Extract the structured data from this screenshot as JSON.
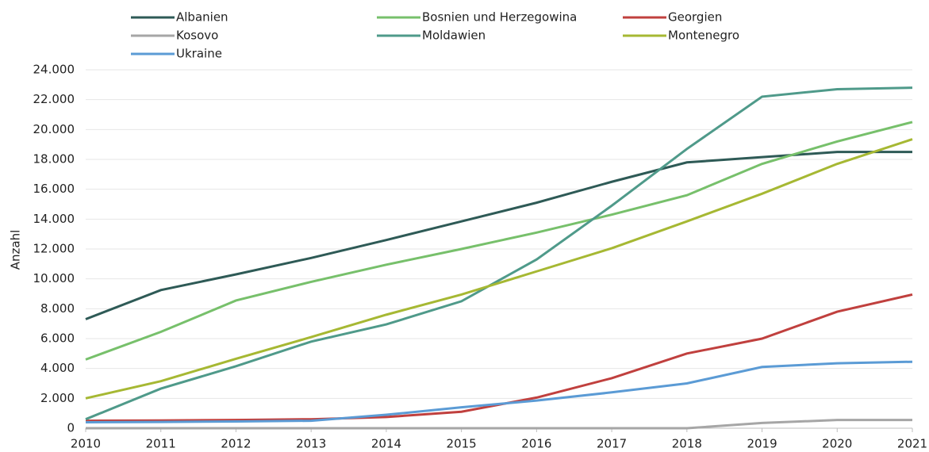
{
  "chart_data": {
    "type": "line",
    "ylabel": "Anzahl",
    "x": [
      2010,
      2011,
      2012,
      2013,
      2014,
      2015,
      2016,
      2017,
      2018,
      2019,
      2020,
      2021
    ],
    "xlim": [
      2010,
      2021
    ],
    "xticks": [
      2010,
      2011,
      2012,
      2013,
      2014,
      2015,
      2016,
      2017,
      2018,
      2019,
      2020,
      2021
    ],
    "ylim": [
      0,
      24000
    ],
    "yticks": [
      0,
      {
        "value": 2000,
        "label": "2.000"
      },
      {
        "value": 4000,
        "label": "4.000"
      },
      {
        "value": 6000,
        "label": "6.000"
      },
      {
        "value": 8000,
        "label": "8.000"
      },
      {
        "value": 10000,
        "label": "10.000"
      },
      {
        "value": 12000,
        "label": "12.000"
      },
      {
        "value": 14000,
        "label": "14.000"
      },
      {
        "value": 16000,
        "label": "16.000"
      },
      {
        "value": 18000,
        "label": "18.000"
      },
      {
        "value": 20000,
        "label": "20.000"
      },
      {
        "value": 22000,
        "label": "22.000"
      },
      {
        "value": 24000,
        "label": "24.000"
      }
    ],
    "grid": true,
    "legend": "top",
    "series": [
      {
        "name": "Albanien",
        "color": "#2e5a56",
        "values": [
          7300,
          9250,
          10300,
          11400,
          12600,
          13850,
          15100,
          16500,
          17800,
          18150,
          18500,
          18500
        ]
      },
      {
        "name": "Bosnien und Herzegowina",
        "color": "#77c06b",
        "values": [
          4600,
          6450,
          8550,
          9800,
          10950,
          12000,
          13100,
          14300,
          15600,
          17700,
          19200,
          20500
        ]
      },
      {
        "name": "Georgien",
        "color": "#c0403e",
        "values": [
          500,
          520,
          550,
          600,
          750,
          1100,
          2050,
          3350,
          5000,
          6000,
          7800,
          8950
        ]
      },
      {
        "name": "Kosovo",
        "color": "#a6a6a6",
        "values": [
          0,
          0,
          0,
          0,
          0,
          0,
          0,
          0,
          0,
          350,
          550,
          550
        ]
      },
      {
        "name": "Moldawien",
        "color": "#4f9a8a",
        "values": [
          600,
          2650,
          4150,
          5800,
          6950,
          8500,
          11300,
          14900,
          18700,
          22200,
          22700,
          22800
        ]
      },
      {
        "name": "Montenegro",
        "color": "#a6b833",
        "values": [
          2000,
          3150,
          4650,
          6100,
          7600,
          8950,
          10500,
          12050,
          13850,
          15700,
          17700,
          19350
        ]
      },
      {
        "name": "Ukraine",
        "color": "#5b9bd5",
        "values": [
          400,
          420,
          450,
          500,
          900,
          1400,
          1850,
          2400,
          3000,
          4100,
          4350,
          4450
        ]
      }
    ]
  }
}
